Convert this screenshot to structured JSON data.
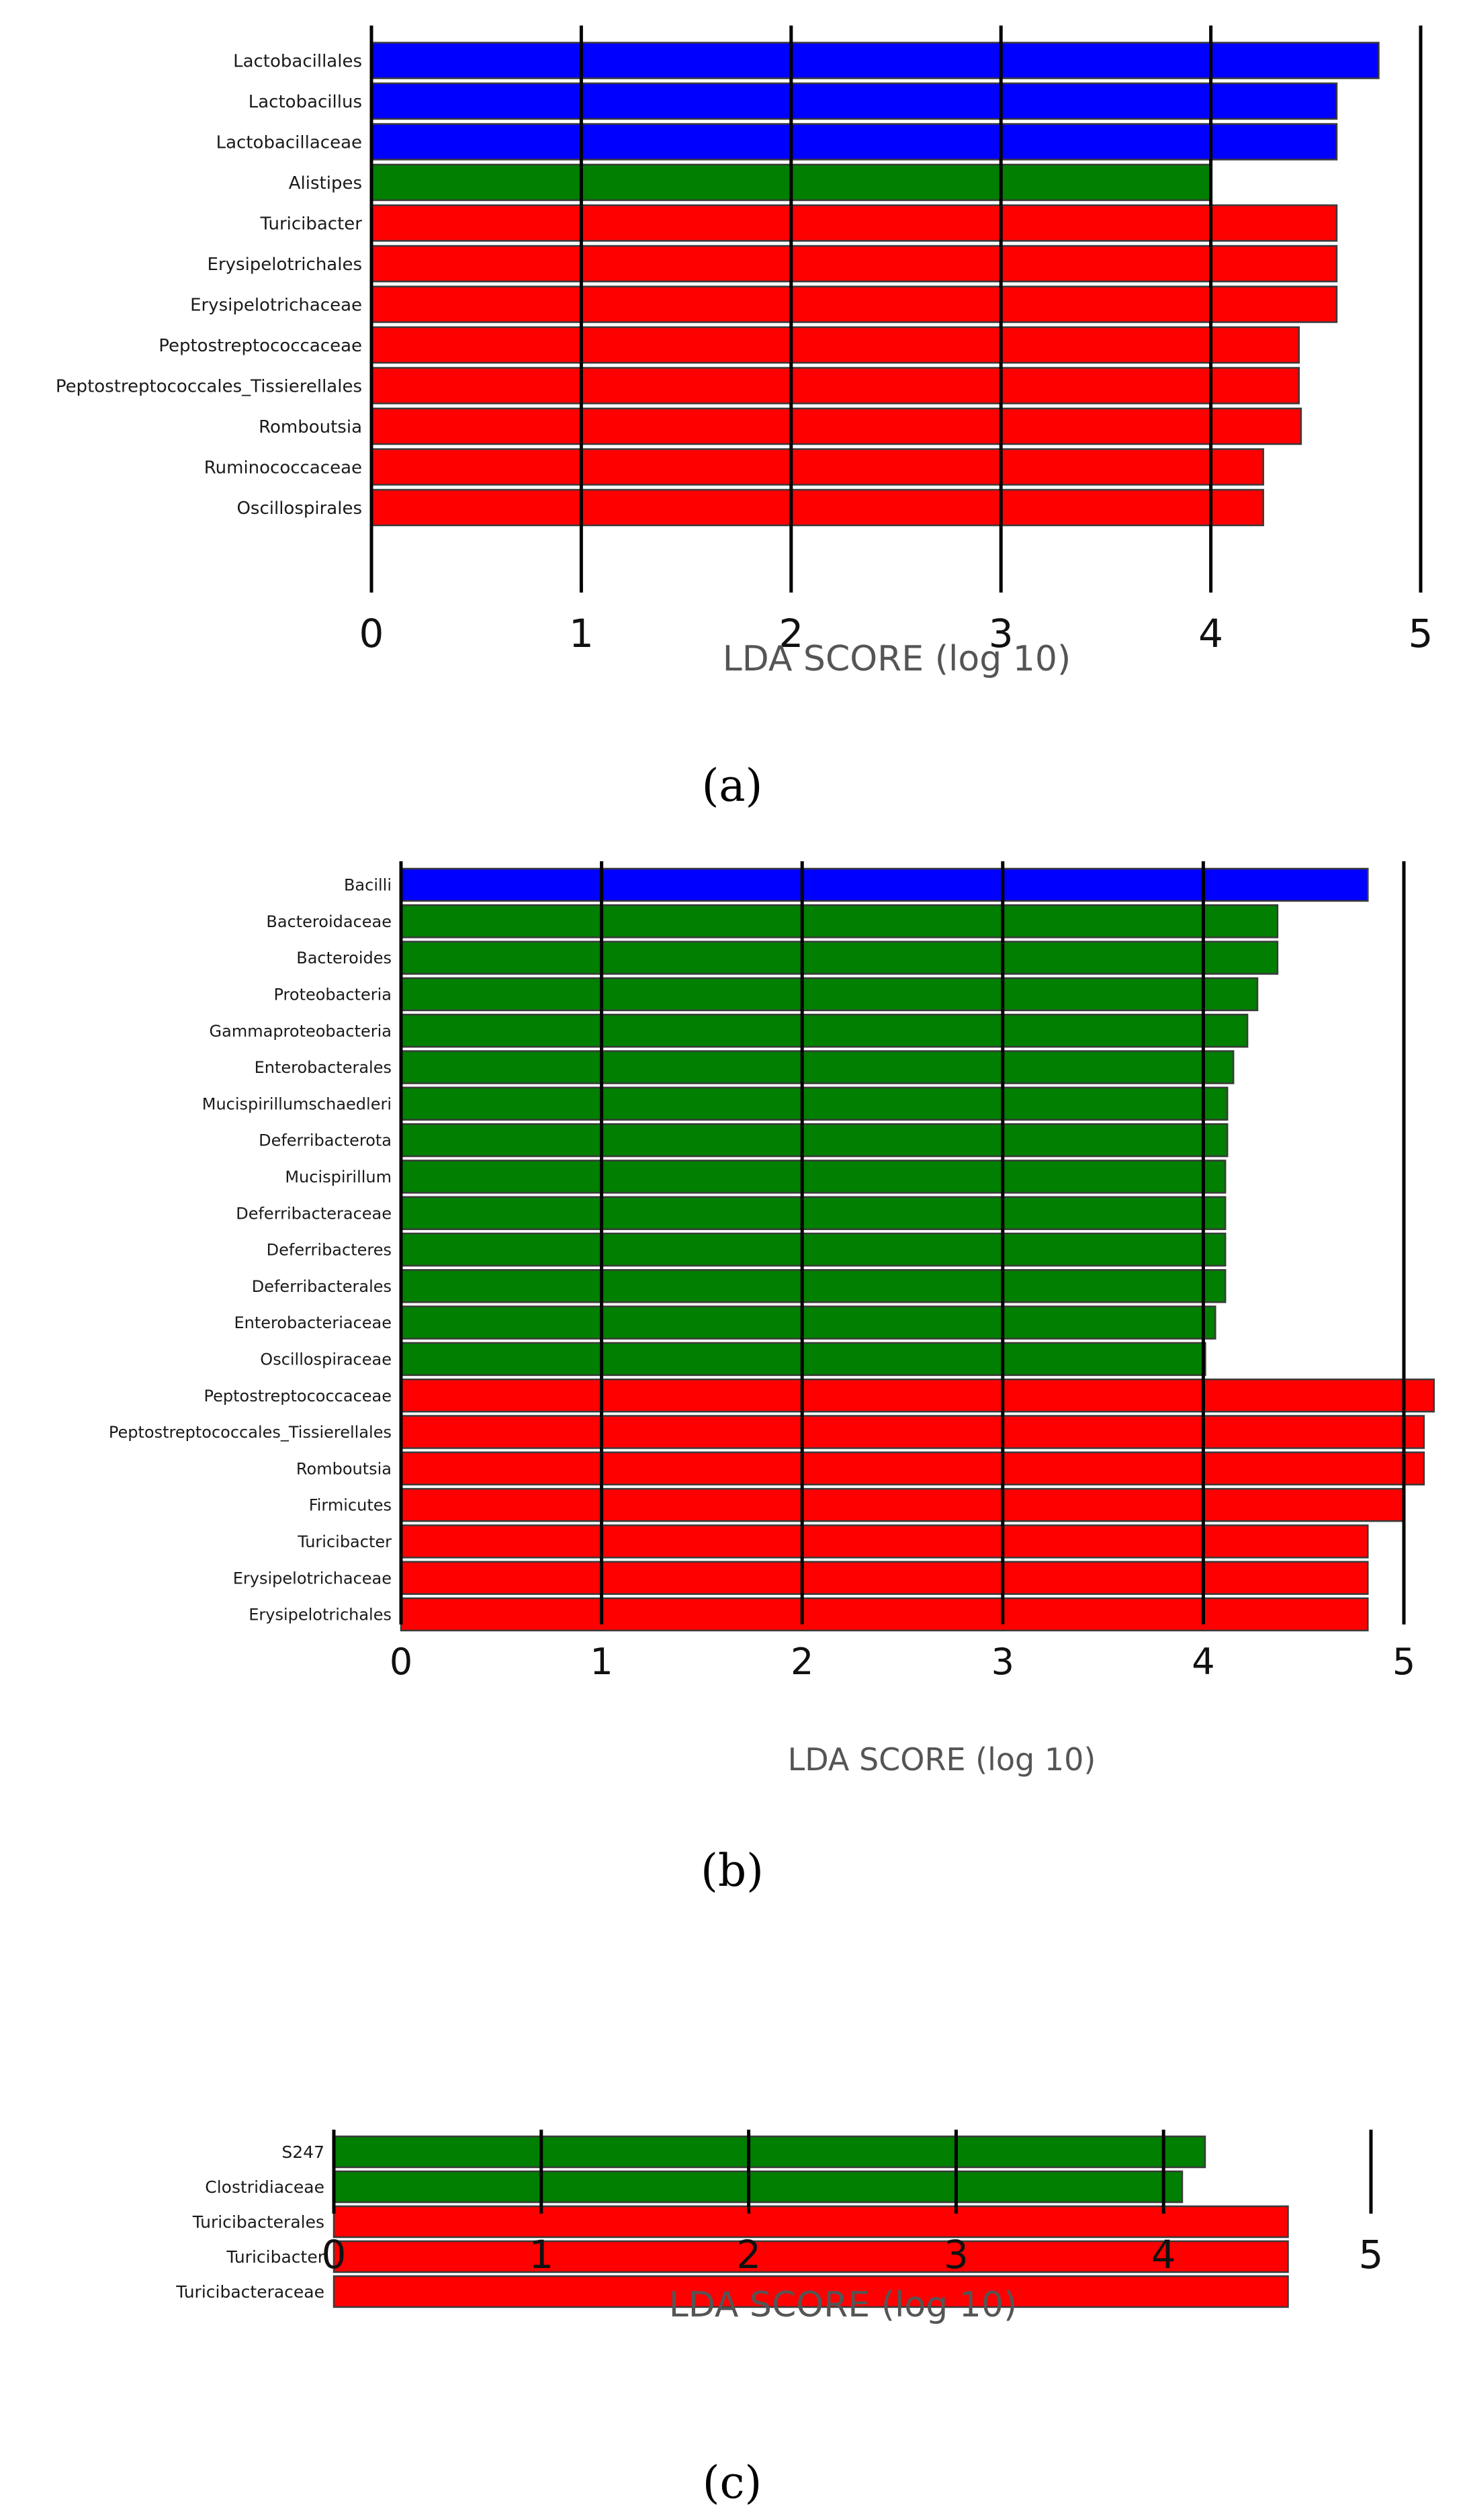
{
  "figure": {
    "labels": [
      "(a)",
      "(b)",
      "(c)"
    ]
  },
  "colors": {
    "blue": "#0000ff",
    "green": "#007f00",
    "red": "#ff0000"
  },
  "chart_data": [
    {
      "type": "bar",
      "orientation": "horizontal",
      "panel_label": "(a)",
      "xlabel": "LDA SCORE (log 10)",
      "xlim": [
        0,
        5
      ],
      "xticks": [
        "0",
        "1",
        "2",
        "3",
        "4",
        "5"
      ],
      "categories": [
        "Lactobacillales",
        "Lactobacillus",
        "Lactobacillaceae",
        "Alistipes",
        "Turicibacter",
        "Erysipelotrichales",
        "Erysipelotrichaceae",
        "Peptostreptococcaceae",
        "Peptostreptococcales_Tissierellales",
        "Romboutsia",
        "Ruminococcaceae",
        "Oscillospirales"
      ],
      "values": [
        4.8,
        4.6,
        4.6,
        4.0,
        4.6,
        4.6,
        4.6,
        4.42,
        4.42,
        4.43,
        4.25,
        4.25
      ],
      "groups": [
        "blue",
        "blue",
        "blue",
        "green",
        "red",
        "red",
        "red",
        "red",
        "red",
        "red",
        "red",
        "red"
      ]
    },
    {
      "type": "bar",
      "orientation": "horizontal",
      "panel_label": "(b)",
      "xlabel": "LDA SCORE (log 10)",
      "xlim": [
        0,
        5
      ],
      "xticks": [
        "0",
        "1",
        "2",
        "3",
        "4",
        "5"
      ],
      "categories": [
        "Bacilli",
        "Bacteroidaceae",
        "Bacteroides",
        "Proteobacteria",
        "Gammaproteobacteria",
        "Enterobacterales",
        "Mucispirillumschaedleri",
        "Deferribacterota",
        "Mucispirillum",
        "Deferribacteraceae",
        "Deferribacteres",
        "Deferribacterales",
        "Enterobacteriaceae",
        "Oscillospiraceae",
        "Peptostreptococcaceae",
        "Peptostreptococcales_Tissierellales",
        "Romboutsia",
        "Firmicutes",
        "Turicibacter",
        "Erysipelotrichaceae",
        "Erysipelotrichales"
      ],
      "values": [
        4.82,
        4.37,
        4.37,
        4.27,
        4.22,
        4.15,
        4.12,
        4.12,
        4.11,
        4.11,
        4.11,
        4.11,
        4.06,
        4.01,
        5.15,
        5.1,
        5.1,
        5.0,
        4.82,
        4.82,
        4.82
      ],
      "groups": [
        "blue",
        "green",
        "green",
        "green",
        "green",
        "green",
        "green",
        "green",
        "green",
        "green",
        "green",
        "green",
        "green",
        "green",
        "red",
        "red",
        "red",
        "red",
        "red",
        "red",
        "red"
      ]
    },
    {
      "type": "bar",
      "orientation": "horizontal",
      "panel_label": "(c)",
      "xlabel": "LDA SCORE (log 10)",
      "xlim": [
        0,
        5
      ],
      "xticks": [
        "0",
        "1",
        "2",
        "3",
        "4",
        "5"
      ],
      "categories": [
        "S247",
        "Clostridiaceae",
        "Turicibacterales",
        "Turicibacter",
        "Turicibacteraceae"
      ],
      "values": [
        4.2,
        4.09,
        4.6,
        4.6,
        4.6
      ],
      "groups": [
        "green",
        "green",
        "red",
        "red",
        "red"
      ]
    }
  ]
}
